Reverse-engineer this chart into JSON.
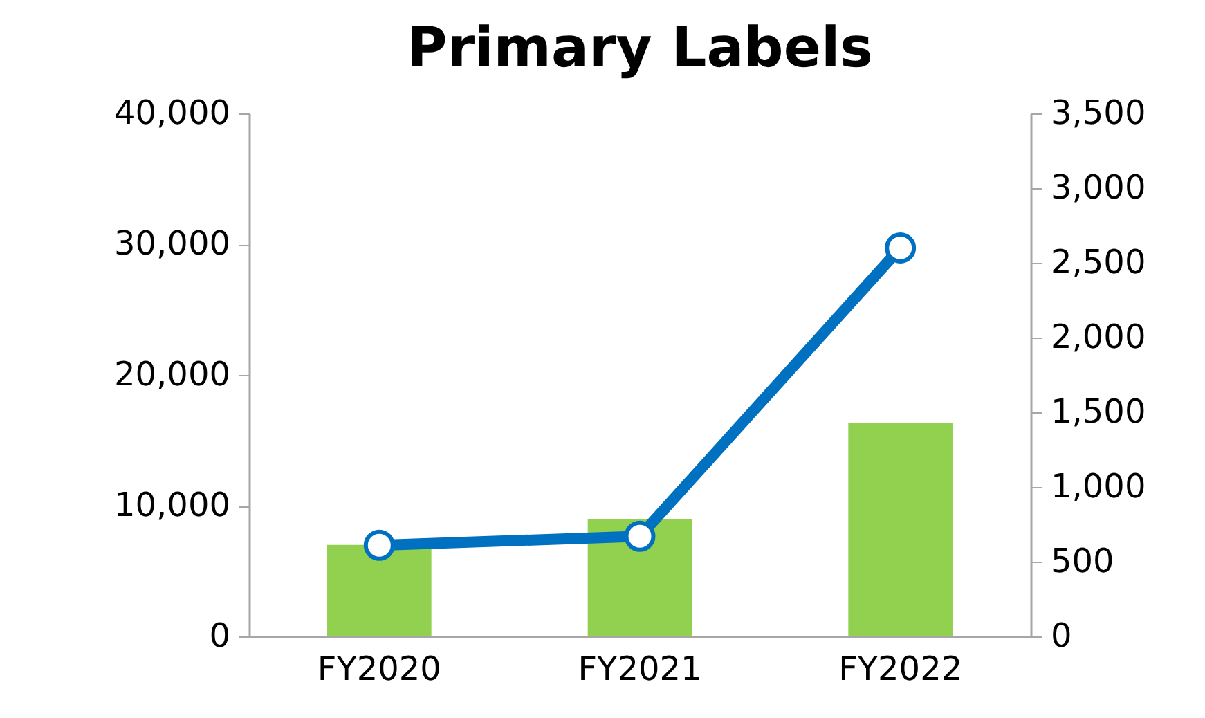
{
  "chart_data": {
    "type": "bar",
    "title": "Primary Labels",
    "categories": [
      "FY2020",
      "FY2021",
      "FY2022"
    ],
    "series": [
      {
        "color": "#92d050",
        "values": [
          7000,
          9000,
          16300
        ]
      },
      {
        "type": "line",
        "axis": "y2",
        "color": "#0070c0",
        "values": [
          610,
          670,
          2600
        ]
      }
    ],
    "ylim": [
      0,
      40000
    ],
    "yticks": [
      0,
      {
        "value": 10000,
        "label": "10,000"
      },
      {
        "value": 20000,
        "label": "20,000"
      },
      {
        "value": 30000,
        "label": "30,000"
      },
      {
        "value": 40000,
        "label": "40,000"
      }
    ],
    "y2lim": [
      0,
      3500
    ],
    "y2ticks": [
      0,
      500,
      {
        "value": 1000,
        "label": "1,000"
      },
      {
        "value": 1500,
        "label": "1,500"
      },
      {
        "value": 2000,
        "label": "2,000"
      },
      {
        "value": 2500,
        "label": "2,500"
      },
      {
        "value": 3000,
        "label": "3,000"
      },
      {
        "value": 3500,
        "label": "3,500"
      }
    ],
    "marker": "circle",
    "grid": false
  }
}
